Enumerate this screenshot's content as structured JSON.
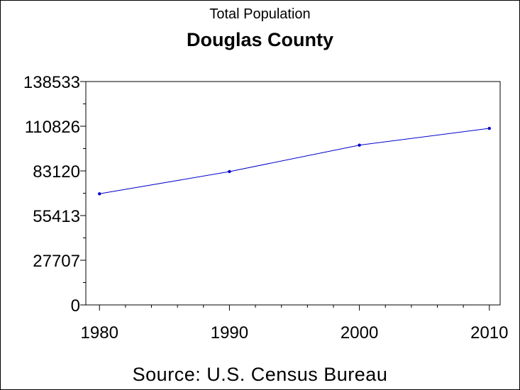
{
  "chart_data": {
    "type": "line",
    "subtitle": "Total Population",
    "title": "Douglas County",
    "footnote": "Source: U.S. Census Bureau",
    "xlabel": "",
    "ylabel": "",
    "x": [
      1980,
      1990,
      2000,
      2010
    ],
    "values": [
      68900,
      82700,
      99100,
      109500
    ],
    "xlim": [
      1980,
      2010
    ],
    "ylim": [
      0,
      138533
    ],
    "yticks": [
      0,
      27707,
      55413,
      83120,
      110826,
      138533
    ],
    "xticks": [
      1980,
      1990,
      2000,
      2010
    ],
    "grid": false,
    "line_color": "#0000cc",
    "marker_color": "#0000cc"
  }
}
